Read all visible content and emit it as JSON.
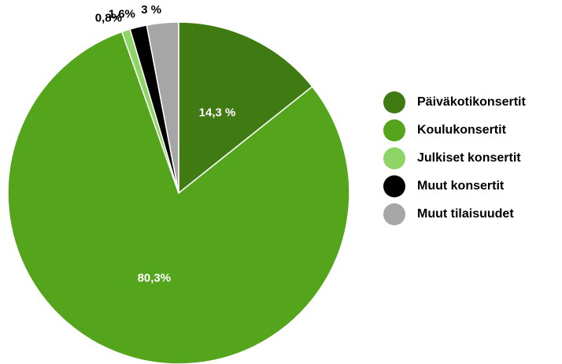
{
  "chart_data": {
    "type": "pie",
    "categories": [
      "Päiväkotikonsertit",
      "Koulukonsertit",
      "Julkiset konsertit",
      "Muut konsertit",
      "Muut tilaisuudet"
    ],
    "values": [
      14.3,
      80.3,
      0.8,
      1.6,
      3
    ],
    "value_labels": [
      "14,3 %",
      "80,3%",
      "0,8%",
      "1,6%",
      "3 %"
    ],
    "colors": [
      "#3f7a12",
      "#55a51c",
      "#8ed466",
      "#000000",
      "#a6a6a6"
    ],
    "legend": "right"
  }
}
